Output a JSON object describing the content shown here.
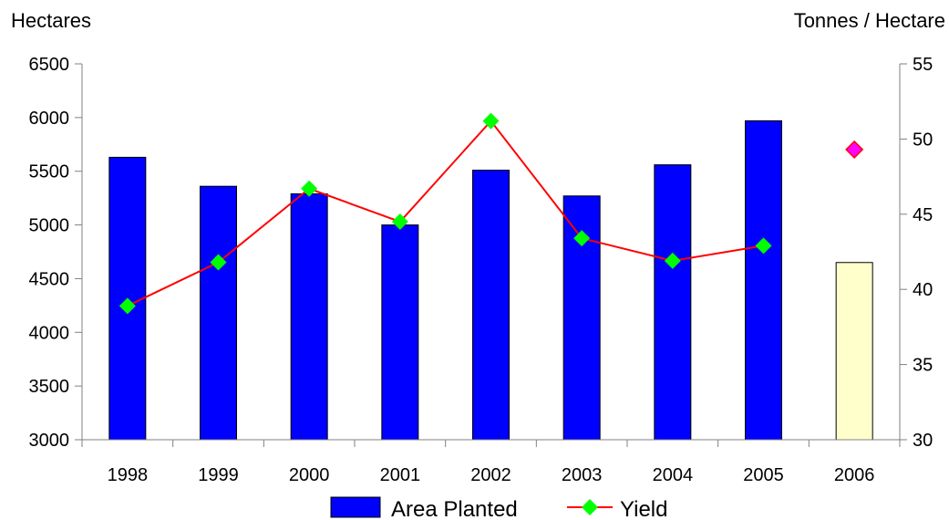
{
  "chart_data": {
    "type": "bar",
    "categories": [
      "1998",
      "1999",
      "2000",
      "2001",
      "2002",
      "2003",
      "2004",
      "2005",
      "2006"
    ],
    "series": [
      {
        "name": "Area Planted",
        "type": "bar",
        "axis": "left",
        "color": "#0000ff",
        "values": [
          5630,
          5360,
          5290,
          5000,
          5510,
          5270,
          5560,
          5970,
          4650
        ],
        "highlight_color": "#ffffcc",
        "highlight_index": 8
      },
      {
        "name": "Yield",
        "type": "line",
        "axis": "right",
        "line_color": "#ff0000",
        "marker_color": "#00ff00",
        "values": [
          38.9,
          41.8,
          46.7,
          44.5,
          51.2,
          43.4,
          41.9,
          42.9,
          null
        ]
      },
      {
        "type": "point",
        "axis": "right",
        "marker_color": "#ff00ff",
        "edge_color": "#ff0000",
        "values": [
          null,
          null,
          null,
          null,
          null,
          null,
          null,
          null,
          49.3
        ]
      }
    ],
    "y_left": {
      "label": "Hectares",
      "min": 3000,
      "max": 6500,
      "ticks": [
        "3000",
        "3500",
        "4000",
        "4500",
        "5000",
        "5500",
        "6000",
        "6500"
      ]
    },
    "y_right": {
      "label": "Tonnes / Hectare",
      "min": 30,
      "max": 55,
      "ticks": [
        "30",
        "35",
        "40",
        "45",
        "50",
        "55"
      ]
    },
    "grid": false,
    "legend_position": "bottom-center"
  }
}
